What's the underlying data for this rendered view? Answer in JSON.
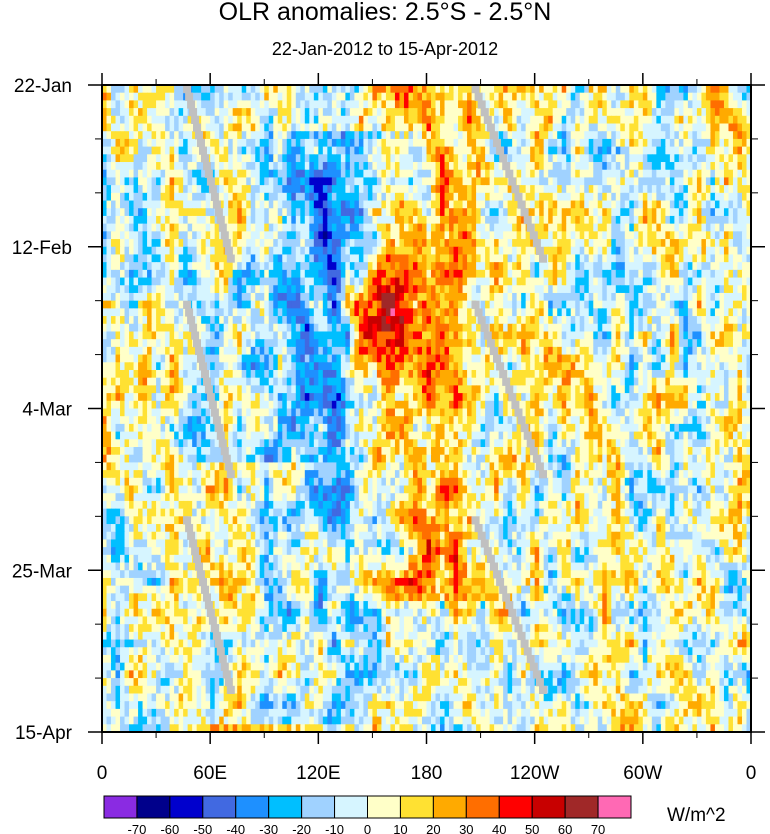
{
  "chart_data": {
    "type": "heatmap",
    "title": "OLR anomalies: 2.5°S - 2.5°N",
    "subtitle": "22-Jan-2012 to 15-Apr-2012",
    "x_axis": {
      "label": "",
      "ticks": [
        "0",
        "60E",
        "120E",
        "180",
        "120W",
        "60W",
        "0"
      ],
      "tick_values": [
        0,
        60,
        120,
        180,
        240,
        300,
        360
      ],
      "range": [
        0,
        360
      ]
    },
    "y_axis": {
      "label": "",
      "ticks": [
        "22-Jan",
        "12-Feb",
        "4-Mar",
        "25-Mar",
        "15-Apr"
      ],
      "range": [
        "2012-01-22",
        "2012-04-15"
      ],
      "direction": "time increases downward"
    },
    "colorbar": {
      "unit_label": "W/m^2",
      "levels": [
        "-70",
        "-60",
        "-50",
        "-40",
        "-30",
        "-20",
        "-10",
        "0",
        "10",
        "20",
        "30",
        "40",
        "50",
        "60",
        "70"
      ],
      "colors": [
        "#8a2be2",
        "#00008b",
        "#0000cd",
        "#4169e1",
        "#1e90ff",
        "#00bfff",
        "#a0d2ff",
        "#d6f5ff",
        "#ffffc8",
        "#ffe132",
        "#ffaa00",
        "#ff6e00",
        "#ff0000",
        "#c80000",
        "#a02828",
        "#ff69b4"
      ],
      "placement": "bottom"
    },
    "missing_value_color": "#c0c0c0",
    "features": [
      {
        "description": "eastward-propagating negative anomaly band",
        "lon_start": 40,
        "lon_end": 170,
        "date_start": "2012-02-01",
        "date_end": "2012-04-10",
        "sign": "negative"
      },
      {
        "description": "positive anomaly band",
        "lon_start": 150,
        "lon_end": 200,
        "date_start": "2012-01-22",
        "date_end": "2012-03-25",
        "sign": "positive"
      },
      {
        "description": "strong positive anomaly maximum",
        "lon": 155,
        "date": "2012-02-22",
        "value": 60
      },
      {
        "description": "positive anomaly region",
        "lon_start": 60,
        "lon_end": 120,
        "date_start": "2012-03-15",
        "date_end": "2012-04-15",
        "sign": "positive"
      }
    ]
  }
}
